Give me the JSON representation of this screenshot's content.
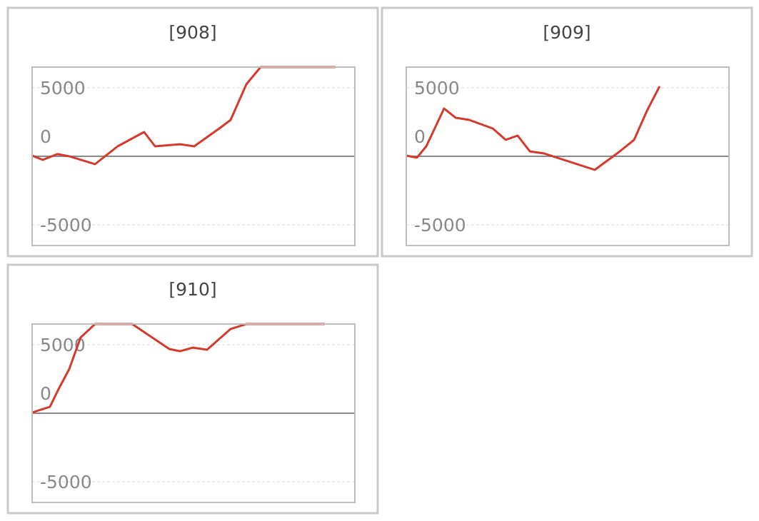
{
  "chart_data": [
    {
      "type": "line",
      "title": "[908]",
      "color": "#d33a2c",
      "x": [
        0,
        3.3,
        7.8,
        11.5,
        19.5,
        26.5,
        34.7,
        38.1,
        45.8,
        50.2,
        58.6,
        61.5,
        66.4,
        70.8,
        94.0
      ],
      "values": [
        50,
        -260,
        160,
        0,
        -570,
        730,
        1770,
        730,
        880,
        730,
        2130,
        2650,
        5250,
        6500,
        6500
      ],
      "xlim": [
        0,
        100
      ],
      "ylim": [
        -6500,
        6500
      ],
      "yticks": [
        -5000,
        0,
        5000
      ],
      "grid": true
    },
    {
      "type": "line",
      "title": "[909]",
      "color": "#d33a2c",
      "x": [
        0,
        3.3,
        6.2,
        11.7,
        15.3,
        19.5,
        26.8,
        30.8,
        34.5,
        38.3,
        42.7,
        58.4,
        65.9,
        70.6,
        74.6,
        78.5
      ],
      "values": [
        50,
        -100,
        730,
        3480,
        2810,
        2650,
        2030,
        1200,
        1510,
        360,
        210,
        -990,
        310,
        1200,
        3330,
        5100
      ],
      "xlim": [
        0,
        100
      ],
      "ylim": [
        -6500,
        6500
      ],
      "yticks": [
        -5000,
        0,
        5000
      ],
      "grid": true
    },
    {
      "type": "line",
      "title": "[910]",
      "color": "#d33a2c",
      "x": [
        0,
        5.5,
        8.2,
        11.5,
        15.0,
        19.5,
        31.0,
        42.5,
        45.8,
        49.8,
        54.2,
        61.5,
        66.4,
        90.7
      ],
      "values": [
        50,
        470,
        1770,
        3220,
        5510,
        6500,
        6500,
        4680,
        4520,
        4780,
        4630,
        6140,
        6500,
        6500
      ],
      "xlim": [
        0,
        100
      ],
      "ylim": [
        -6500,
        6500
      ],
      "yticks": [
        -5000,
        0,
        5000
      ],
      "grid": true
    }
  ]
}
